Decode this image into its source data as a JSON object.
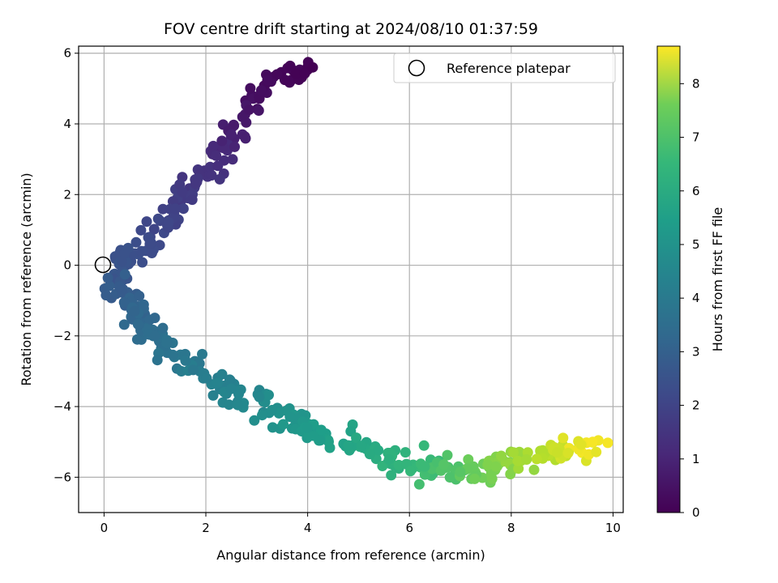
{
  "chart_data": {
    "type": "scatter",
    "title": "FOV centre drift starting at 2024/08/10 01:37:59",
    "xlabel": "Angular distance from reference (arcmin)",
    "ylabel": "Rotation from reference (arcmin)",
    "xlim": [
      -0.5,
      10.2
    ],
    "ylim": [
      -7.0,
      6.2
    ],
    "xticks": [
      0,
      2,
      4,
      6,
      8,
      10
    ],
    "yticks": [
      -6,
      -4,
      -2,
      0,
      2,
      4,
      6
    ],
    "grid": true,
    "legend": {
      "placement": "top-right",
      "entries": [
        "Reference platepar"
      ]
    },
    "reference_point": {
      "x": 0,
      "y": 0
    },
    "colorbar": {
      "label": "Hours from first FF file",
      "range": [
        0,
        8.7
      ],
      "ticks": [
        0,
        1,
        2,
        3,
        4,
        5,
        6,
        7,
        8
      ],
      "colormap": "viridis"
    },
    "anchors": [
      {
        "x": 4.1,
        "y": 5.6,
        "t": 0.0
      },
      {
        "x": 3.4,
        "y": 5.4,
        "t": 0.15
      },
      {
        "x": 2.85,
        "y": 4.4,
        "t": 0.45
      },
      {
        "x": 2.5,
        "y": 3.7,
        "t": 0.8
      },
      {
        "x": 2.2,
        "y": 3.1,
        "t": 1.1
      },
      {
        "x": 1.8,
        "y": 2.3,
        "t": 1.4
      },
      {
        "x": 1.4,
        "y": 1.6,
        "t": 1.7
      },
      {
        "x": 0.9,
        "y": 0.6,
        "t": 2.0
      },
      {
        "x": 0.35,
        "y": 0.1,
        "t": 2.2
      },
      {
        "x": 0.3,
        "y": -0.6,
        "t": 2.5
      },
      {
        "x": 0.6,
        "y": -1.3,
        "t": 2.8
      },
      {
        "x": 1.0,
        "y": -2.0,
        "t": 3.1
      },
      {
        "x": 1.6,
        "y": -2.7,
        "t": 3.5
      },
      {
        "x": 2.5,
        "y": -3.5,
        "t": 3.9
      },
      {
        "x": 3.3,
        "y": -4.1,
        "t": 4.3
      },
      {
        "x": 4.0,
        "y": -4.6,
        "t": 4.7
      },
      {
        "x": 4.8,
        "y": -5.1,
        "t": 5.1
      },
      {
        "x": 5.6,
        "y": -5.5,
        "t": 5.5
      },
      {
        "x": 6.3,
        "y": -5.7,
        "t": 5.9
      },
      {
        "x": 7.0,
        "y": -5.85,
        "t": 6.4
      },
      {
        "x": 7.7,
        "y": -5.7,
        "t": 7.0
      },
      {
        "x": 8.3,
        "y": -5.5,
        "t": 7.5
      },
      {
        "x": 8.9,
        "y": -5.3,
        "t": 8.0
      },
      {
        "x": 9.6,
        "y": -5.0,
        "t": 8.6
      }
    ],
    "points_per_segment": 22,
    "scatter_spread": {
      "x": 0.28,
      "y": 0.32
    }
  }
}
